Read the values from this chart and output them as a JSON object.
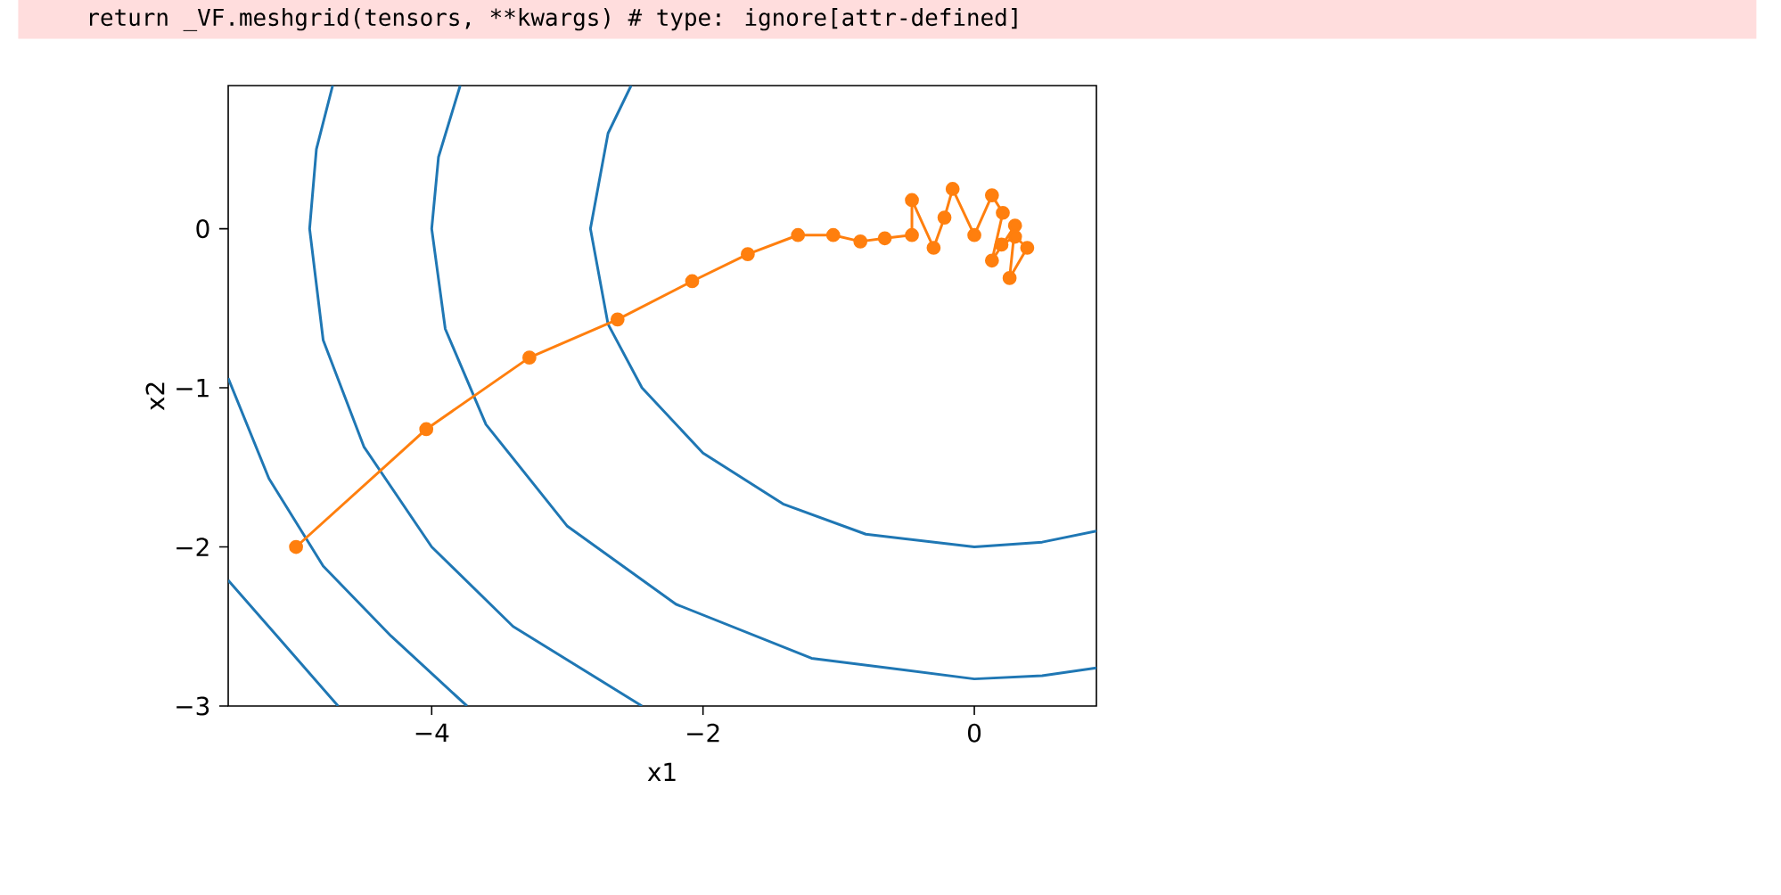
{
  "chart_data": {
    "type": "line",
    "xlabel": "x1",
    "ylabel": "x2",
    "xlim": [
      -5.5,
      0.9
    ],
    "ylim": [
      -3,
      0.9
    ],
    "xticks": [
      {
        "value": -4,
        "label": "−4"
      },
      {
        "value": -2,
        "label": "−2"
      },
      0
    ],
    "yticks": [
      0,
      {
        "value": -1,
        "label": "−1"
      },
      {
        "value": -2,
        "label": "−2"
      },
      {
        "value": -3,
        "label": "−3"
      }
    ],
    "marker": "none",
    "line_style": "solid",
    "annotations": [
      "return _VF.meshgrid(tensors, **kwargs)  # type: ignore[attr-defined]"
    ],
    "series": [
      {
        "color": "#1f77b4",
        "x": [
          -2.53,
          -2.7,
          -2.83,
          -2.7,
          -2.45,
          -2.0,
          -1.41,
          -0.8,
          0,
          0.5,
          0.9
        ],
        "values": [
          0.9,
          0.6,
          0,
          -0.6,
          -1.0,
          -1.41,
          -1.73,
          -1.92,
          -2,
          -1.97,
          -1.9
        ]
      },
      {
        "color": "#1f77b4",
        "x": [
          -3.79,
          -3.95,
          -4,
          -3.9,
          -3.6,
          -3.0,
          -2.2,
          -1.2,
          0,
          0.5,
          0.9
        ],
        "values": [
          0.9,
          0.45,
          0,
          -0.63,
          -1.23,
          -1.87,
          -2.36,
          -2.7,
          -2.83,
          -2.81,
          -2.76
        ]
      },
      {
        "color": "#1f77b4",
        "x": [
          -4.73,
          -4.85,
          -4.9,
          -4.8,
          -4.5,
          -4.0,
          -3.4,
          -2.45
        ],
        "values": [
          0.9,
          0.5,
          0,
          -0.7,
          -1.37,
          -2.0,
          -2.5,
          -3.0
        ]
      },
      {
        "color": "#1f77b4",
        "x": [
          -5.5,
          -5.2,
          -4.8,
          -4.3,
          -3.74
        ],
        "values": [
          -0.94,
          -1.57,
          -2.12,
          -2.56,
          -3.0
        ]
      },
      {
        "color": "#1f77b4",
        "x": [
          -5.5,
          -5.1,
          -4.69
        ],
        "values": [
          -2.21,
          -2.6,
          -3.0
        ]
      },
      {
        "color": "#ff7f0e",
        "marker": "circle",
        "x": [
          -5,
          -4.04,
          -3.28,
          -2.63,
          -2.08,
          -1.67,
          -1.3,
          -1.04,
          -0.84,
          -0.66,
          -0.46,
          -0.46,
          -0.3,
          -0.22,
          -0.16,
          0,
          0.13,
          0.21,
          0.13,
          0.3,
          0.26,
          0.39,
          0.3,
          0.2
        ],
        "values": [
          -2,
          -1.26,
          -0.81,
          -0.57,
          -0.33,
          -0.16,
          -0.04,
          -0.04,
          -0.08,
          -0.06,
          -0.04,
          0.18,
          -0.12,
          0.07,
          0.25,
          -0.04,
          0.21,
          0.1,
          -0.2,
          0.02,
          -0.31,
          -0.12,
          -0.05,
          -0.1
        ]
      }
    ]
  }
}
